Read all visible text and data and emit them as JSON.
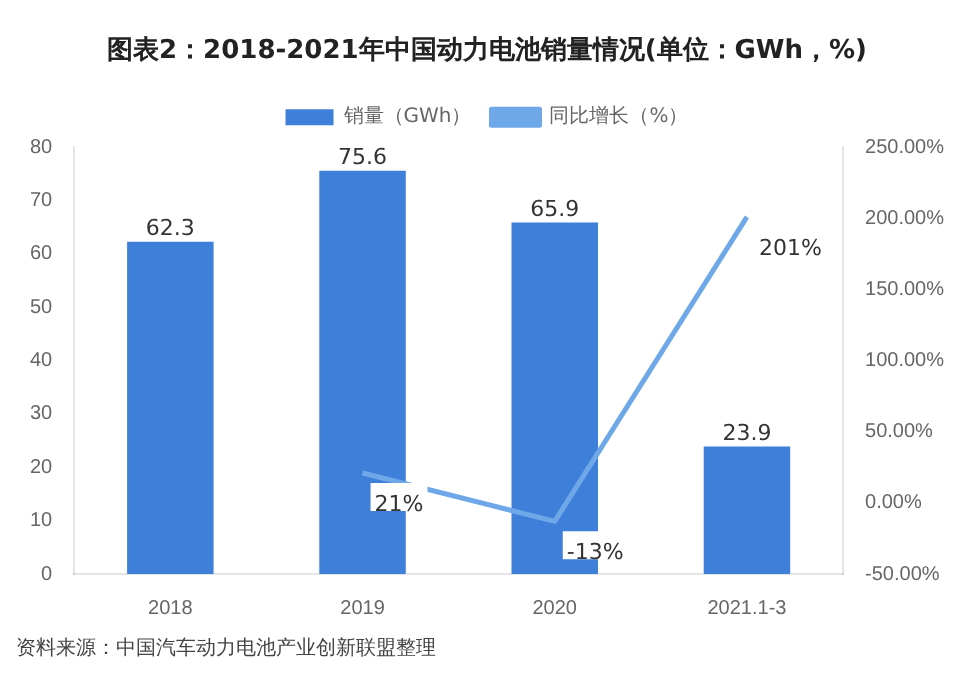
{
  "chart_data": {
    "type": "bar",
    "title": "图表2：2018-2021年中国动力电池销量情况(单位：GWh，%)",
    "categories": [
      "2018",
      "2019",
      "2020",
      "2021.1-3"
    ],
    "series": [
      {
        "name": "销量（GWh）",
        "color": "#3d7fd9",
        "values": [
          62.3,
          75.6,
          65.9,
          23.9
        ],
        "value_labels": [
          "62.3",
          "75.6",
          "65.9",
          "23.9"
        ]
      },
      {
        "name": "同比增长（%）",
        "type": "line",
        "axis": "y2",
        "color": "#6fa8e8",
        "values": [
          null,
          21,
          -13,
          201
        ],
        "value_labels": [
          null,
          "21%",
          "-13%",
          "201%"
        ]
      }
    ],
    "ylim": [
      0,
      80
    ],
    "yticks": [
      0,
      10,
      20,
      30,
      40,
      50,
      60,
      70,
      80
    ],
    "y2lim": [
      -50,
      250
    ],
    "y2ticks": [
      {
        "value": -50,
        "label": "-50.00%"
      },
      {
        "value": 0,
        "label": "0.00%"
      },
      {
        "value": 50,
        "label": "50.00%"
      },
      {
        "value": 100,
        "label": "100.00%"
      },
      {
        "value": 150,
        "label": "150.00%"
      },
      {
        "value": 200,
        "label": "200.00%"
      },
      {
        "value": 250,
        "label": "250.00%"
      }
    ],
    "legend": "top",
    "grid": false,
    "marker": "none",
    "annotations": [
      "资料来源：中国汽车动力电池产业创新联盟整理"
    ]
  }
}
